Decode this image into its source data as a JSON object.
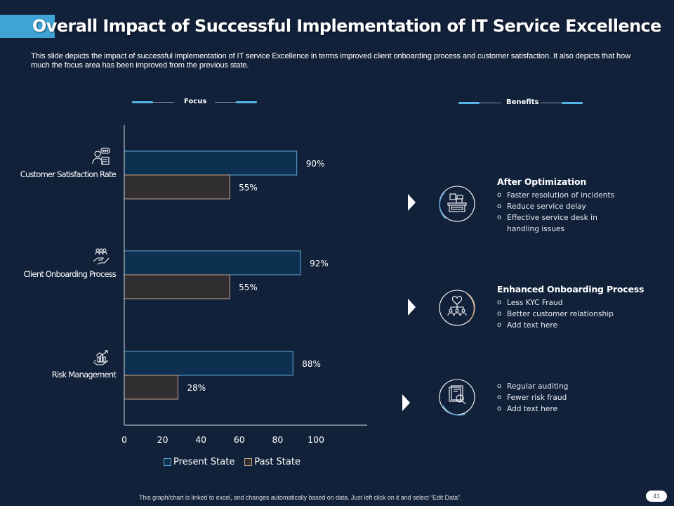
{
  "header": {
    "title": "Overall Impact of Successful Implementation of IT Service Excellence",
    "subtitle": "This slide depicts the impact of successful implementation of  IT  service Excellence in terms improved client onboarding process and customer satisfaction.  It also depicts that how much the focus area has been improved from the previous state."
  },
  "sections": {
    "focus_label": "Focus",
    "benefits_label": "Benefits"
  },
  "colors": {
    "background": "#12213a",
    "accent": "#3fa3d6",
    "present_fill": "#0e3050",
    "present_stroke": "#5fa9d8",
    "past_fill": "#312e32",
    "past_stroke": "#c9a88a"
  },
  "chart_data": {
    "type": "bar",
    "orientation": "horizontal",
    "categories": [
      "Customer Satisfaction Rate",
      "Client Onboarding Process",
      "Risk Management"
    ],
    "category_icons": [
      "customer-support-icon",
      "hand-with-people-icon",
      "hand-with-growth-chart-icon"
    ],
    "series": [
      {
        "name": "Present State",
        "values": [
          90,
          92,
          88
        ],
        "labels": [
          "90%",
          "92%",
          "88%"
        ]
      },
      {
        "name": "Past State",
        "values": [
          55,
          55,
          28
        ],
        "labels": [
          "55%",
          "55%",
          "28%"
        ]
      }
    ],
    "xticks": [
      "0",
      "20",
      "40",
      "60",
      "80",
      "100"
    ],
    "xlim": [
      0,
      126
    ],
    "grid": false,
    "legend_position": "bottom",
    "title": "",
    "xlabel": "",
    "ylabel": ""
  },
  "benefits": [
    {
      "icon": "service-desk-icon",
      "title": "After Optimization",
      "items": [
        "Faster resolution  of incidents",
        "Reduce service  delay",
        "Effective  service desk in handling issues"
      ]
    },
    {
      "icon": "heart-network-people-icon",
      "title": "Enhanced Onboarding Process",
      "items": [
        "Less  KYC Fraud",
        "Better  customer  relationship",
        "Add text  here"
      ]
    },
    {
      "icon": "audit-magnifier-icon",
      "title": "",
      "items": [
        "Regular  auditing",
        "Fewer  risk  fraud",
        "Add text  here"
      ]
    }
  ],
  "footer": {
    "note": "This graph/chart is linked to excel, and changes automatically based on data.  Just left click on it and select “Edit Data”.",
    "page_number": "41"
  }
}
